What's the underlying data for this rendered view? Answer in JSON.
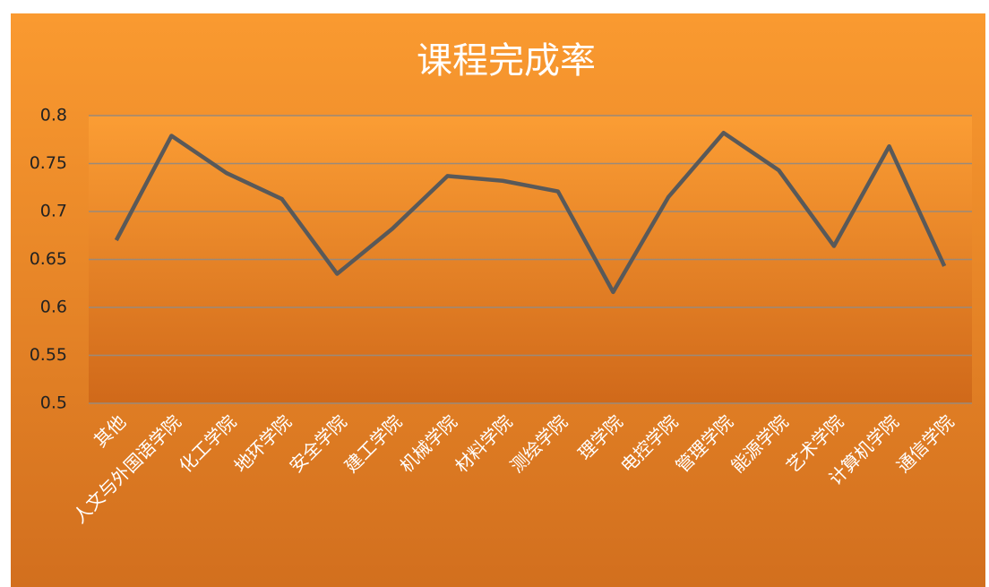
{
  "chart_data": {
    "type": "line",
    "title": "课程完成率",
    "categories": [
      "其他",
      "人文与外国语学院",
      "化工学院",
      "地环学院",
      "安全学院",
      "建工学院",
      "机械学院",
      "材料学院",
      "测绘学院",
      "理学院",
      "电控学院",
      "管理学院",
      "能源学院",
      "艺术学院",
      "计算机学院",
      "通信学院"
    ],
    "values": [
      0.67,
      0.779,
      0.74,
      0.713,
      0.635,
      0.682,
      0.737,
      0.732,
      0.721,
      0.616,
      0.715,
      0.782,
      0.743,
      0.664,
      0.768,
      0.643
    ],
    "color": "#595959",
    "ylim": [
      0.5,
      0.8
    ],
    "yticks": [
      0.5,
      0.55,
      0.6,
      0.65,
      0.7,
      0.75,
      0.8
    ],
    "grid": true
  }
}
